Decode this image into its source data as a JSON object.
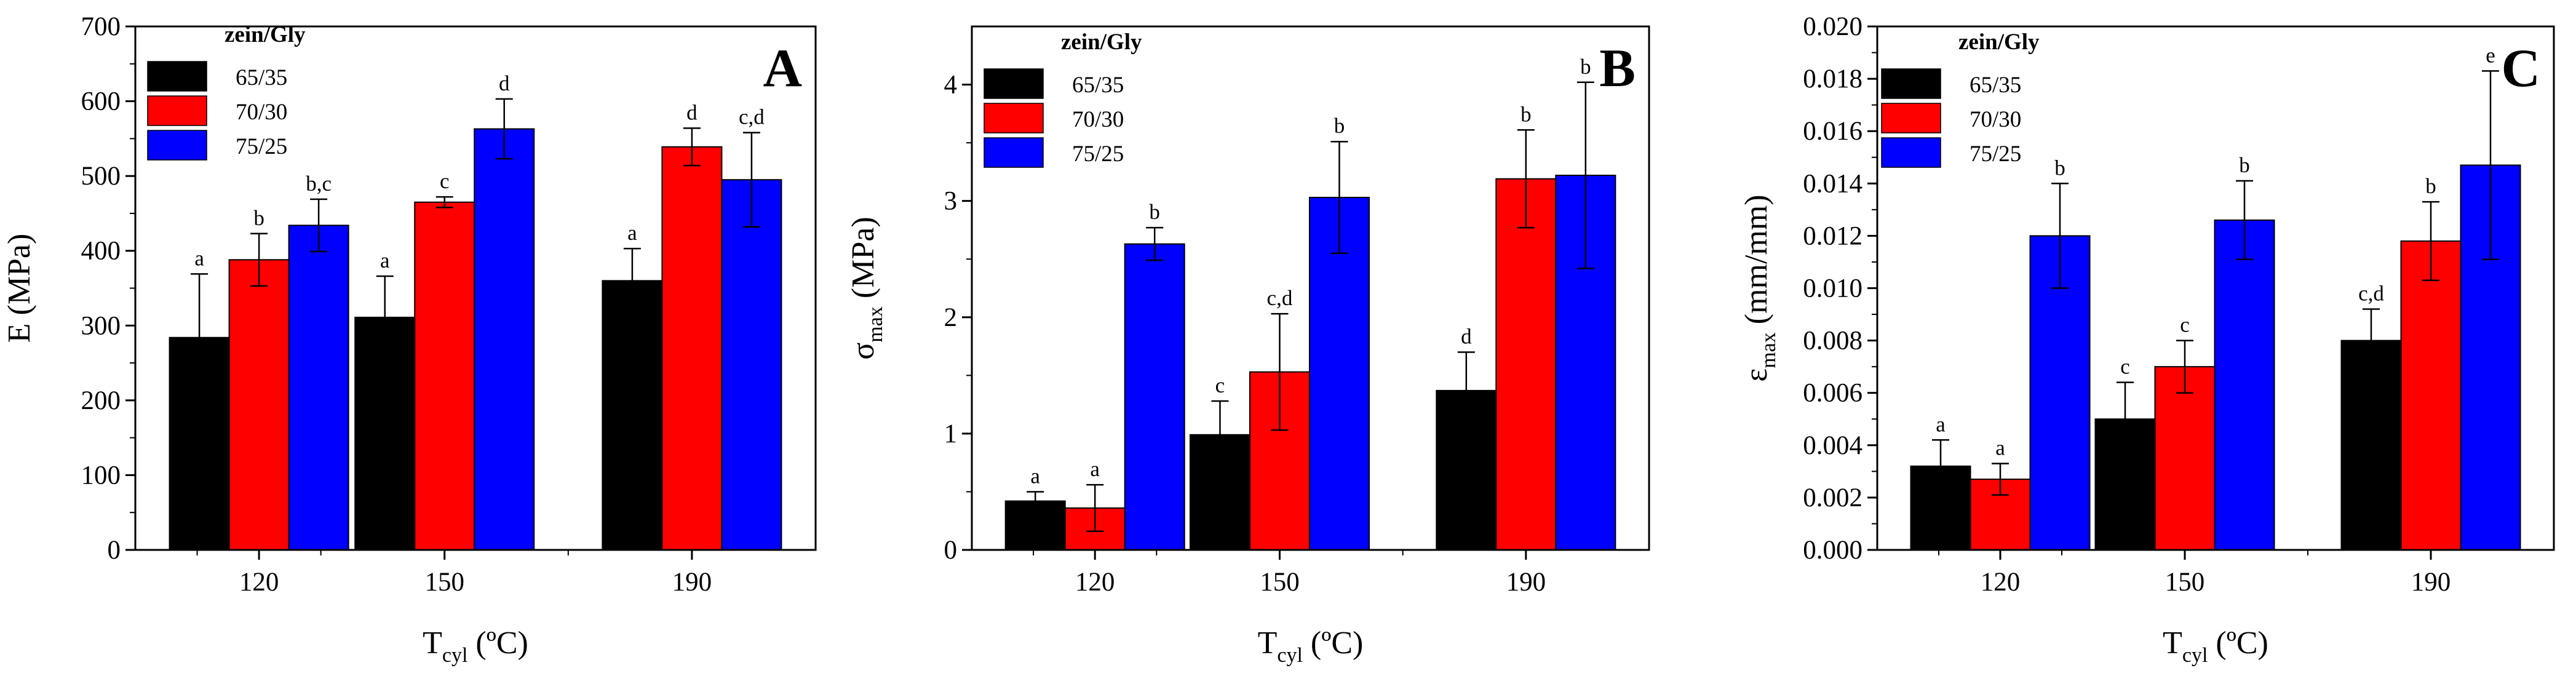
{
  "figure": {
    "panels": [
      "A",
      "B",
      "C"
    ]
  },
  "chart_data": [
    {
      "type": "bar",
      "panel_label": "A",
      "xlabel_main": "T",
      "xlabel_sub": "cyl",
      "xlabel_unit": " (ºC)",
      "ylabel_main": "E (MPa)",
      "ylabel_sub": "",
      "ylabel_unit": "",
      "categories": [
        "120",
        "150",
        "190"
      ],
      "category_x": [
        120,
        150,
        190
      ],
      "xlim": [
        100,
        210
      ],
      "ylim": [
        0,
        700
      ],
      "yticks": [
        0,
        100,
        200,
        300,
        400,
        500,
        600,
        700
      ],
      "ytick_labels": [
        "0",
        "100",
        "200",
        "300",
        "400",
        "500",
        "600",
        "700"
      ],
      "legend_title": "zein/Gly",
      "legend_position": "top-left",
      "series": [
        {
          "name": "65/35",
          "color": "#000000",
          "values": [
            284,
            311,
            360
          ],
          "errors": [
            85,
            55,
            43
          ],
          "labels": [
            "a",
            "a",
            "a"
          ]
        },
        {
          "name": "70/30",
          "color": "#ff0000",
          "values": [
            388,
            465,
            539
          ],
          "errors": [
            35,
            7,
            25
          ],
          "labels": [
            "b",
            "c",
            "d"
          ]
        },
        {
          "name": "75/25",
          "color": "#0000ff",
          "values": [
            434,
            563,
            495
          ],
          "errors": [
            35,
            40,
            63
          ],
          "labels": [
            "b,c",
            "d",
            "c,d"
          ]
        }
      ]
    },
    {
      "type": "bar",
      "panel_label": "B",
      "xlabel_main": "T",
      "xlabel_sub": "cyl",
      "xlabel_unit": " (ºC)",
      "ylabel_main": "σ",
      "ylabel_sub": "max",
      "ylabel_unit": " (MPa)",
      "categories": [
        "120",
        "150",
        "190"
      ],
      "category_x": [
        120,
        150,
        190
      ],
      "xlim": [
        100,
        210
      ],
      "ylim": [
        0,
        4.5
      ],
      "yticks": [
        0,
        1,
        2,
        3,
        4
      ],
      "ytick_labels": [
        "0",
        "1",
        "2",
        "3",
        "4"
      ],
      "legend_title": "zein/Gly",
      "legend_position": "top-left",
      "series": [
        {
          "name": "65/35",
          "color": "#000000",
          "values": [
            0.42,
            0.99,
            1.37
          ],
          "errors": [
            0.08,
            0.29,
            0.33
          ],
          "labels": [
            "a",
            "c",
            "d"
          ]
        },
        {
          "name": "70/30",
          "color": "#ff0000",
          "values": [
            0.36,
            1.53,
            3.19
          ],
          "errors": [
            0.2,
            0.5,
            0.42
          ],
          "labels": [
            "a",
            "c,d",
            "b"
          ]
        },
        {
          "name": "75/25",
          "color": "#0000ff",
          "values": [
            2.63,
            3.03,
            3.22
          ],
          "errors": [
            0.14,
            0.48,
            0.8
          ],
          "labels": [
            "b",
            "b",
            "b"
          ]
        }
      ]
    },
    {
      "type": "bar",
      "panel_label": "C",
      "xlabel_main": "T",
      "xlabel_sub": "cyl",
      "xlabel_unit": " (ºC)",
      "ylabel_main": "ε",
      "ylabel_sub": "max",
      "ylabel_unit": " (mm/mm)",
      "categories": [
        "120",
        "150",
        "190"
      ],
      "category_x": [
        120,
        150,
        190
      ],
      "xlim": [
        100,
        210
      ],
      "ylim": [
        0,
        0.02
      ],
      "yticks": [
        0,
        0.002,
        0.004,
        0.006,
        0.008,
        0.01,
        0.012,
        0.014,
        0.016,
        0.018,
        0.02
      ],
      "ytick_labels": [
        "0.000",
        "0.002",
        "0.004",
        "0.006",
        "0.008",
        "0.010",
        "0.012",
        "0.014",
        "0.016",
        "0.018",
        "0.020"
      ],
      "legend_title": "zein/Gly",
      "legend_position": "top-left",
      "series": [
        {
          "name": "65/35",
          "color": "#000000",
          "values": [
            0.0032,
            0.005,
            0.008
          ],
          "errors": [
            0.001,
            0.0014,
            0.0012
          ],
          "labels": [
            "a",
            "c",
            "c,d"
          ]
        },
        {
          "name": "70/30",
          "color": "#ff0000",
          "values": [
            0.0027,
            0.007,
            0.0118
          ],
          "errors": [
            0.0006,
            0.001,
            0.0015
          ],
          "labels": [
            "a",
            "c",
            "b"
          ]
        },
        {
          "name": "75/25",
          "color": "#0000ff",
          "values": [
            0.012,
            0.0126,
            0.0147
          ],
          "errors": [
            0.002,
            0.0015,
            0.0036
          ],
          "labels": [
            "b",
            "b",
            "e"
          ]
        }
      ]
    }
  ]
}
